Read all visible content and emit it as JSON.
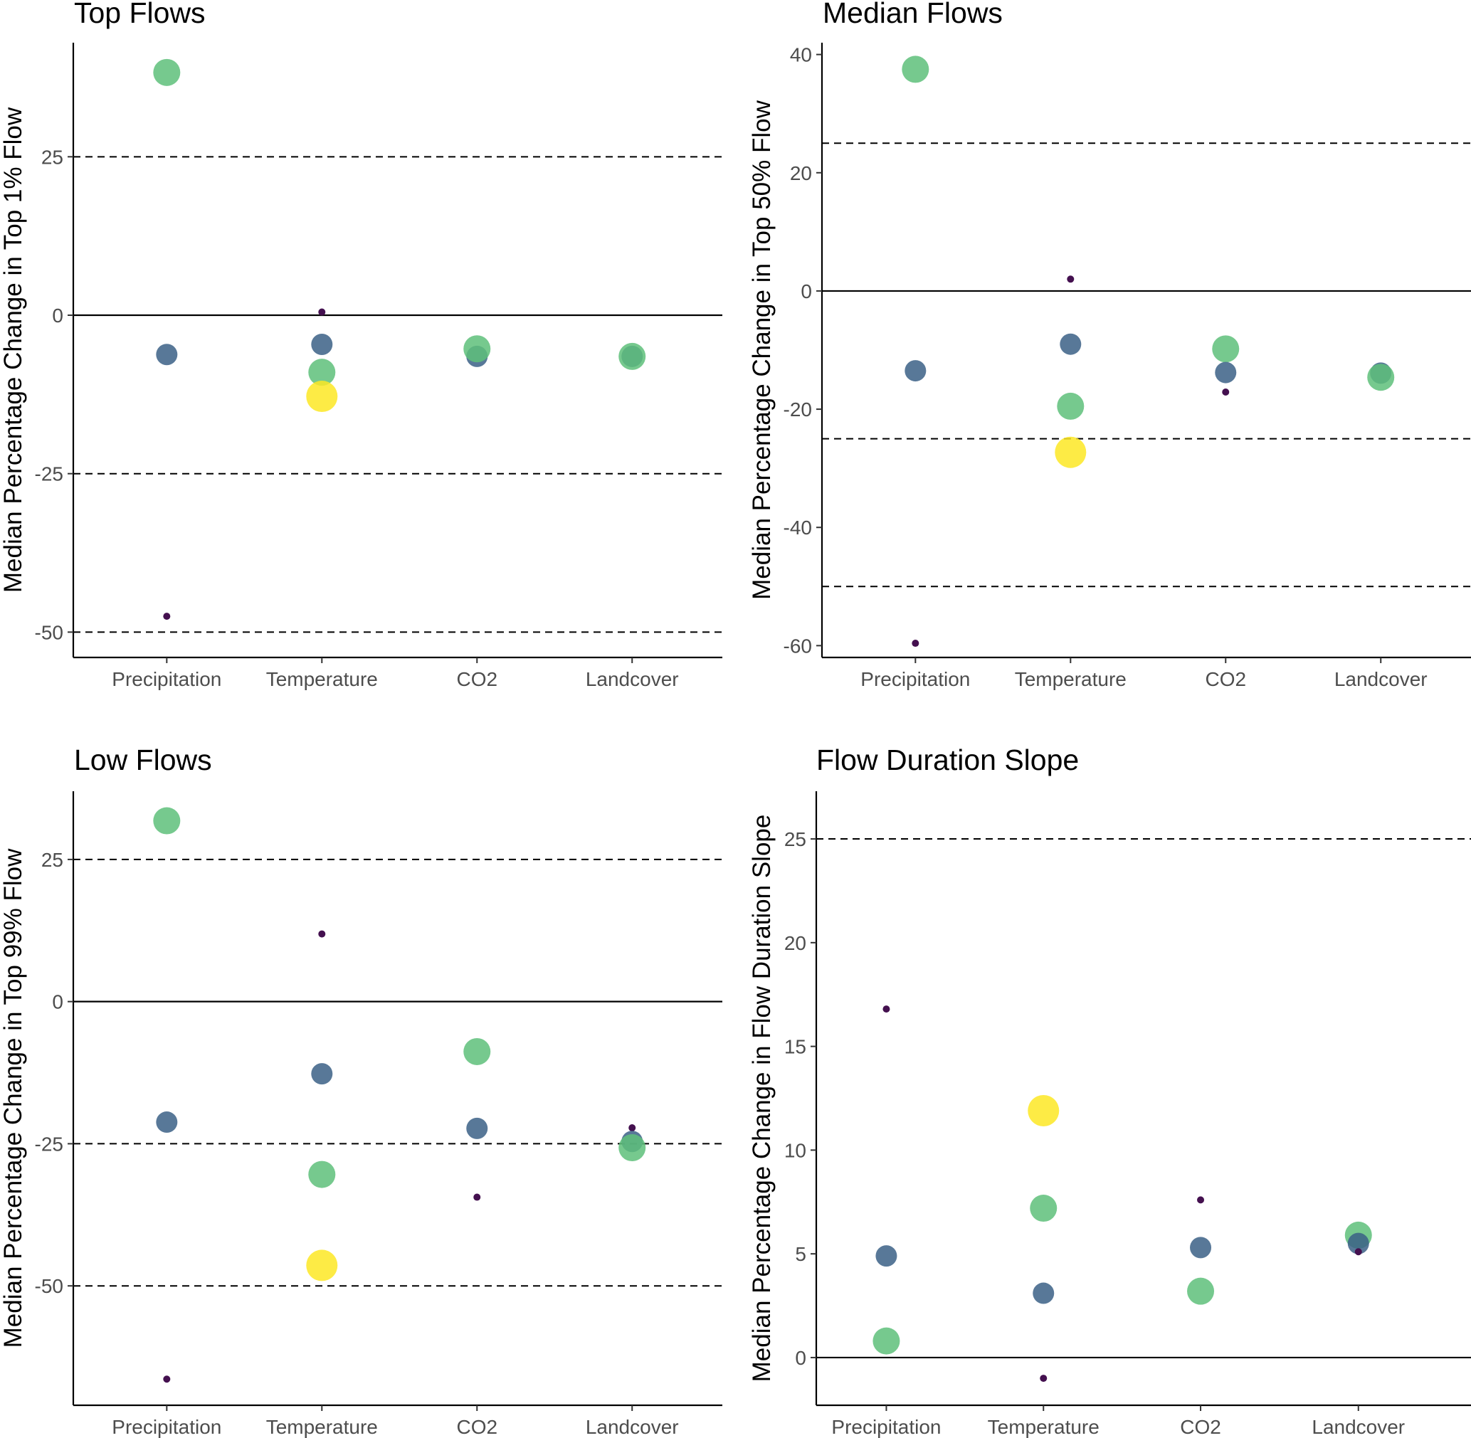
{
  "chart_data": [
    {
      "type": "scatter",
      "title": "Top Flows",
      "ylabel": "Median Percentage Change in Top 1% Flow",
      "xlabel": "",
      "categories": [
        "Precipitation",
        "Temperature",
        "CO2",
        "Landcover"
      ],
      "ylim": [
        -54,
        43
      ],
      "yticks": [
        -50,
        -25,
        0,
        25
      ],
      "zero_line": 0,
      "dashed_lines": [
        25,
        -25,
        -50
      ],
      "points": [
        {
          "category": "Precipitation",
          "y": 38.3,
          "size": "large",
          "color": "#5ec07a"
        },
        {
          "category": "Precipitation",
          "y": -6.2,
          "size": "medium",
          "color": "#3b6086"
        },
        {
          "category": "Precipitation",
          "y": -47.5,
          "size": "small",
          "color": "#44104f"
        },
        {
          "category": "Temperature",
          "y": 0.5,
          "size": "small",
          "color": "#44104f"
        },
        {
          "category": "Temperature",
          "y": -4.6,
          "size": "medium",
          "color": "#3b6086"
        },
        {
          "category": "Temperature",
          "y": -9.0,
          "size": "large",
          "color": "#5ec07a"
        },
        {
          "category": "Temperature",
          "y": -12.8,
          "size": "xlarge",
          "color": "#fde725"
        },
        {
          "category": "CO2",
          "y": -6.5,
          "size": "medium",
          "color": "#3b6086"
        },
        {
          "category": "CO2",
          "y": -5.3,
          "size": "large",
          "color": "#5ec07a"
        },
        {
          "category": "Landcover",
          "y": -6.5,
          "size": "medium",
          "color": "#3b6086"
        },
        {
          "category": "Landcover",
          "y": -6.5,
          "size": "large",
          "color": "#5ec07a"
        }
      ]
    },
    {
      "type": "scatter",
      "title": "Median Flows",
      "ylabel": "Median Percentage Change in Top 50% Flow",
      "xlabel": "",
      "categories": [
        "Precipitation",
        "Temperature",
        "CO2",
        "Landcover"
      ],
      "ylim": [
        -62,
        42
      ],
      "yticks": [
        -60,
        -40,
        -20,
        0,
        20,
        40
      ],
      "zero_line": 0,
      "dashed_lines": [
        25,
        -25,
        -50
      ],
      "points": [
        {
          "category": "Precipitation",
          "y": 37.5,
          "size": "large",
          "color": "#5ec07a"
        },
        {
          "category": "Precipitation",
          "y": -13.5,
          "size": "medium",
          "color": "#3b6086"
        },
        {
          "category": "Precipitation",
          "y": -59.6,
          "size": "small",
          "color": "#44104f"
        },
        {
          "category": "Temperature",
          "y": 2.0,
          "size": "small",
          "color": "#44104f"
        },
        {
          "category": "Temperature",
          "y": -9.0,
          "size": "medium",
          "color": "#3b6086"
        },
        {
          "category": "Temperature",
          "y": -19.5,
          "size": "large",
          "color": "#5ec07a"
        },
        {
          "category": "Temperature",
          "y": -27.3,
          "size": "xlarge",
          "color": "#fde725"
        },
        {
          "category": "CO2",
          "y": -9.8,
          "size": "large",
          "color": "#5ec07a"
        },
        {
          "category": "CO2",
          "y": -13.8,
          "size": "medium",
          "color": "#3b6086"
        },
        {
          "category": "CO2",
          "y": -17.1,
          "size": "small",
          "color": "#44104f"
        },
        {
          "category": "Landcover",
          "y": -13.9,
          "size": "medium",
          "color": "#3b6086"
        },
        {
          "category": "Landcover",
          "y": -14.6,
          "size": "large",
          "color": "#5ec07a"
        }
      ]
    },
    {
      "type": "scatter",
      "title": "Low Flows",
      "ylabel": "Median Percentage Change in Top 99% Flow",
      "xlabel": "",
      "categories": [
        "Precipitation",
        "Temperature",
        "CO2",
        "Landcover"
      ],
      "ylim": [
        -71,
        37
      ],
      "yticks": [
        -50,
        -25,
        0,
        25
      ],
      "zero_line": 0,
      "dashed_lines": [
        25,
        -25,
        -50
      ],
      "points": [
        {
          "category": "Precipitation",
          "y": 31.8,
          "size": "large",
          "color": "#5ec07a"
        },
        {
          "category": "Precipitation",
          "y": -21.2,
          "size": "medium",
          "color": "#3b6086"
        },
        {
          "category": "Precipitation",
          "y": -66.4,
          "size": "small",
          "color": "#44104f"
        },
        {
          "category": "Temperature",
          "y": 11.9,
          "size": "small",
          "color": "#44104f"
        },
        {
          "category": "Temperature",
          "y": -12.7,
          "size": "medium",
          "color": "#3b6086"
        },
        {
          "category": "Temperature",
          "y": -30.4,
          "size": "large",
          "color": "#5ec07a"
        },
        {
          "category": "Temperature",
          "y": -46.4,
          "size": "xlarge",
          "color": "#fde725"
        },
        {
          "category": "CO2",
          "y": -8.8,
          "size": "large",
          "color": "#5ec07a"
        },
        {
          "category": "CO2",
          "y": -22.3,
          "size": "medium",
          "color": "#3b6086"
        },
        {
          "category": "CO2",
          "y": -34.4,
          "size": "small",
          "color": "#44104f"
        },
        {
          "category": "Landcover",
          "y": -22.2,
          "size": "small",
          "color": "#44104f"
        },
        {
          "category": "Landcover",
          "y": -24.6,
          "size": "medium",
          "color": "#3b6086"
        },
        {
          "category": "Landcover",
          "y": -25.7,
          "size": "large",
          "color": "#5ec07a"
        }
      ]
    },
    {
      "type": "scatter",
      "title": "Flow Duration Slope",
      "ylabel": "Median Percentage Change in Flow Duration Slope",
      "xlabel": "",
      "categories": [
        "Precipitation",
        "Temperature",
        "CO2",
        "Landcover"
      ],
      "ylim": [
        -2.3,
        27.3
      ],
      "yticks": [
        0,
        5,
        10,
        15,
        20,
        25
      ],
      "zero_line": 0,
      "dashed_lines": [
        25
      ],
      "points": [
        {
          "category": "Precipitation",
          "y": 16.8,
          "size": "small",
          "color": "#44104f"
        },
        {
          "category": "Precipitation",
          "y": 4.9,
          "size": "medium",
          "color": "#3b6086"
        },
        {
          "category": "Precipitation",
          "y": 0.8,
          "size": "large",
          "color": "#5ec07a"
        },
        {
          "category": "Temperature",
          "y": 11.9,
          "size": "xlarge",
          "color": "#fde725"
        },
        {
          "category": "Temperature",
          "y": 7.2,
          "size": "large",
          "color": "#5ec07a"
        },
        {
          "category": "Temperature",
          "y": 3.1,
          "size": "medium",
          "color": "#3b6086"
        },
        {
          "category": "Temperature",
          "y": -1.0,
          "size": "small",
          "color": "#44104f"
        },
        {
          "category": "CO2",
          "y": 7.6,
          "size": "small",
          "color": "#44104f"
        },
        {
          "category": "CO2",
          "y": 5.3,
          "size": "medium",
          "color": "#3b6086"
        },
        {
          "category": "CO2",
          "y": 3.2,
          "size": "large",
          "color": "#5ec07a"
        },
        {
          "category": "Landcover",
          "y": 5.9,
          "size": "large",
          "color": "#5ec07a"
        },
        {
          "category": "Landcover",
          "y": 5.5,
          "size": "medium",
          "color": "#3b6086"
        },
        {
          "category": "Landcover",
          "y": 5.1,
          "size": "small",
          "color": "#44104f"
        }
      ]
    }
  ]
}
